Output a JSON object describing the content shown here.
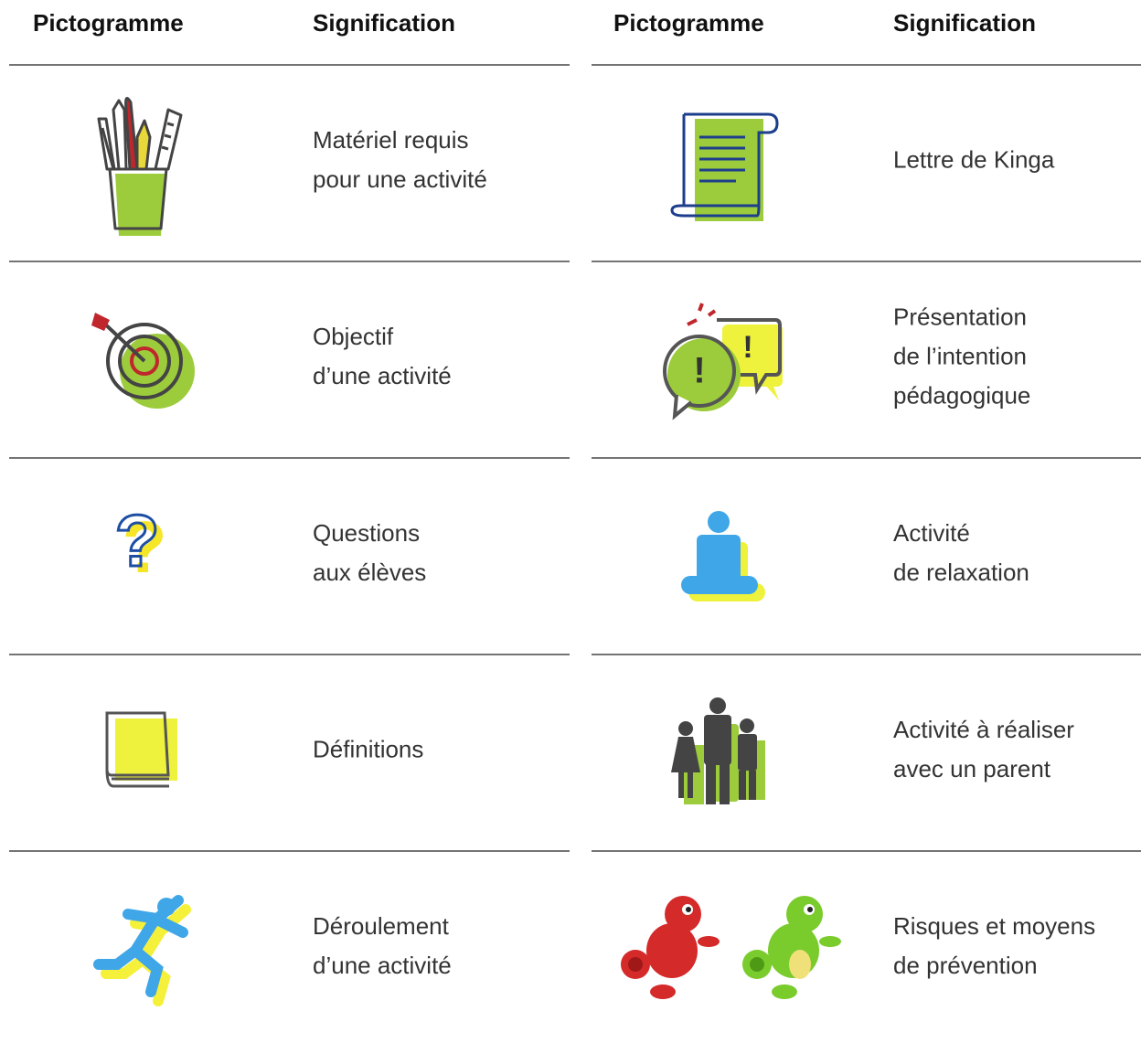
{
  "left": {
    "headers": [
      "Pictogramme",
      "Signification"
    ],
    "rows": [
      {
        "lines": [
          "Matériel requis",
          "pour une activité"
        ]
      },
      {
        "lines": [
          "Objectif",
          "d’une activité"
        ]
      },
      {
        "lines": [
          "Questions",
          "aux élèves"
        ]
      },
      {
        "lines": [
          "Définitions"
        ]
      },
      {
        "lines": [
          "Déroulement",
          "d’une activité"
        ]
      }
    ]
  },
  "right": {
    "headers": [
      "Pictogramme",
      "Signification"
    ],
    "rows": [
      {
        "lines": [
          "Lettre de Kinga"
        ]
      },
      {
        "lines": [
          "Présentation",
          "de l’intention",
          "pédagogique"
        ]
      },
      {
        "lines": [
          "Activité",
          "de relaxation"
        ]
      },
      {
        "lines": [
          "Activité à réaliser",
          "avec un parent"
        ]
      },
      {
        "lines": [
          "Risques et moyens",
          "de prévention"
        ]
      }
    ]
  }
}
